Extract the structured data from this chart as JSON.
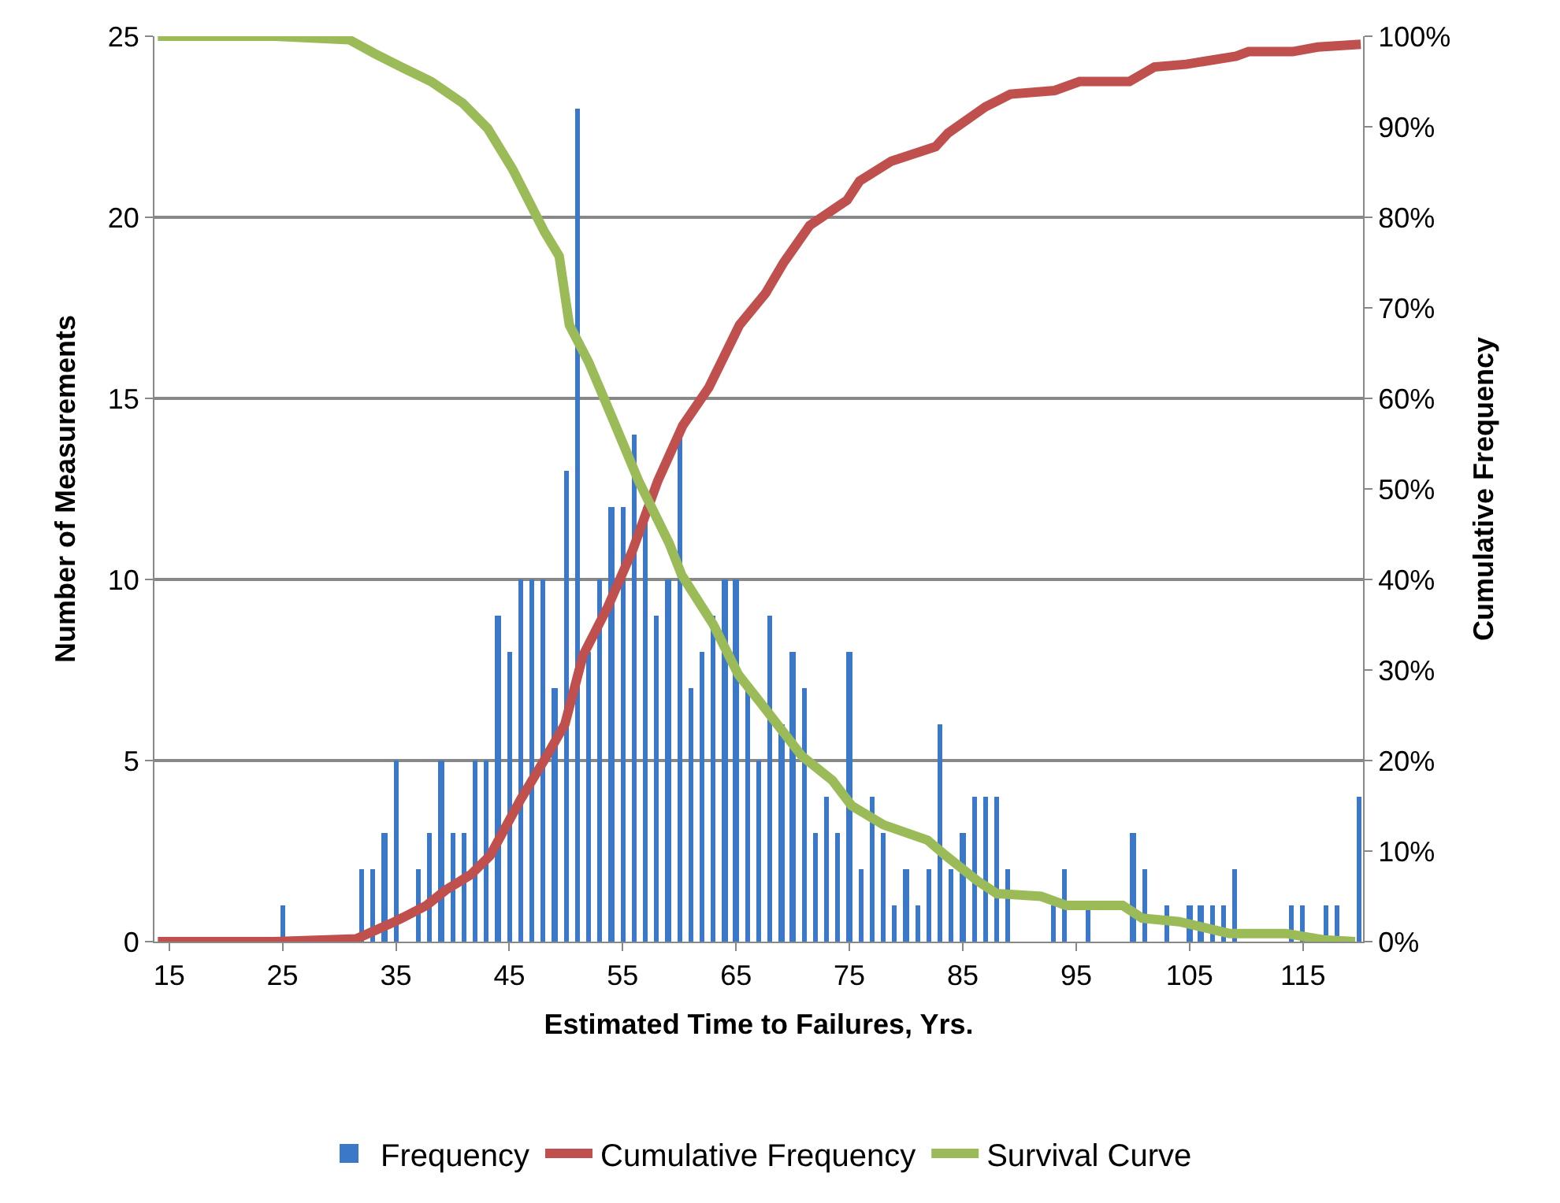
{
  "chart_data": {
    "type": "bar",
    "xlabel": "Estimated Time to Failures, Yrs.",
    "ylabel": "Number of Measurements",
    "y2label": "Cumulative Frequency",
    "x": [
      25,
      32,
      33,
      34,
      35,
      37,
      38,
      39,
      40,
      41,
      42,
      43,
      44,
      45,
      46,
      47,
      48,
      49,
      50,
      51,
      52,
      53,
      54,
      55,
      56,
      57,
      58,
      59,
      60,
      61,
      62,
      63,
      64,
      65,
      66,
      67,
      68,
      69,
      70,
      71,
      72,
      73,
      74,
      75,
      76,
      77,
      78,
      79,
      80,
      81,
      82,
      83,
      84,
      85,
      86,
      87,
      88,
      89,
      93,
      94,
      96,
      100,
      101,
      103,
      105,
      106,
      107,
      108,
      109,
      114,
      115,
      117,
      118,
      120
    ],
    "xlim": [
      13.7,
      120.3
    ],
    "xticks": [
      15,
      25,
      35,
      45,
      55,
      65,
      75,
      85,
      95,
      105,
      115
    ],
    "ylim": [
      0,
      25
    ],
    "yticks": [
      0,
      5,
      10,
      15,
      20,
      25
    ],
    "y2lim": [
      0,
      100
    ],
    "y2ticks": [
      {
        "value": 0,
        "label": "0%"
      },
      {
        "value": 10,
        "label": "10%"
      },
      {
        "value": 20,
        "label": "20%"
      },
      {
        "value": 30,
        "label": "30%"
      },
      {
        "value": 40,
        "label": "40%"
      },
      {
        "value": 50,
        "label": "50%"
      },
      {
        "value": 60,
        "label": "60%"
      },
      {
        "value": 70,
        "label": "70%"
      },
      {
        "value": 80,
        "label": "80%"
      },
      {
        "value": 90,
        "label": "90%"
      },
      {
        "value": 100,
        "label": "100%"
      }
    ],
    "grid": "y",
    "legend": "bottom",
    "series": [
      {
        "name": "Frequency",
        "color": "#3c78c8",
        "values": [
          1,
          2,
          2,
          3,
          5,
          2,
          3,
          5,
          3,
          3,
          5,
          5,
          9,
          8,
          10,
          10,
          10,
          7,
          13,
          23,
          8,
          10,
          12,
          12,
          14,
          12,
          9,
          10,
          14,
          7,
          8,
          9,
          10,
          10,
          7,
          5,
          9,
          6,
          8,
          7,
          3,
          4,
          3,
          8,
          2,
          4,
          3,
          1,
          2,
          1,
          2,
          6,
          2,
          3,
          4,
          4,
          4,
          2,
          1,
          2,
          1,
          3,
          2,
          1,
          1,
          1,
          1,
          1,
          2,
          1,
          1,
          1,
          1,
          4
        ]
      },
      {
        "name": "Cumulative Frequency",
        "type": "line",
        "axis": "y2",
        "color": "#c0504d",
        "x": [
          14,
          24.3,
          31.5,
          34.9,
          37.7,
          39.4,
          41.6,
          43.3,
          46.0,
          48.3,
          49.9,
          51.5,
          53.7,
          55.9,
          58.1,
          60.3,
          62.6,
          65.3,
          67.6,
          69.2,
          71.5,
          74.8,
          75.9,
          78.7,
          82.6,
          83.7,
          87.0,
          89.2,
          93.1,
          95.3,
          99.7,
          101.9,
          104.7,
          109.1,
          110.2,
          114.1,
          116.3,
          120.1
        ],
        "values": [
          0,
          0,
          0.3,
          2.2,
          4.0,
          5.7,
          7.4,
          9.5,
          15.7,
          20.5,
          24,
          31.6,
          37,
          43.3,
          50.9,
          57,
          61.2,
          68.1,
          71.6,
          75,
          79.1,
          81.9,
          84,
          86.2,
          87.8,
          89.3,
          92.2,
          93.6,
          94,
          95,
          95,
          96.6,
          96.9,
          97.8,
          98.3,
          98.3,
          98.8,
          99.1
        ]
      },
      {
        "name": "Survival Curve",
        "type": "line",
        "axis": "y2",
        "color": "#9bbb59",
        "x": [
          14,
          24.3,
          30.9,
          33.1,
          35.3,
          38.1,
          40.9,
          43.1,
          45.3,
          48.1,
          49.4,
          50.3,
          52.0,
          54.1,
          56.4,
          59.1,
          60.2,
          63.0,
          65.2,
          67.4,
          70.8,
          73.5,
          75.2,
          78.0,
          81.9,
          83.5,
          86.3,
          88.0,
          91.9,
          94.1,
          99.1,
          100.8,
          104.1,
          108.5,
          113.5,
          116.8,
          119.6
        ],
        "values": [
          100,
          100,
          99.6,
          98.1,
          96.7,
          95,
          92.6,
          89.8,
          85.3,
          78.4,
          75.7,
          68.1,
          64,
          57.8,
          50.9,
          44,
          40.5,
          35,
          29.5,
          26,
          20.5,
          17.8,
          15,
          12.9,
          11.2,
          9.5,
          6.7,
          5.3,
          5,
          4,
          4,
          2.6,
          2.2,
          0.9,
          0.9,
          0.2,
          0
        ]
      }
    ]
  }
}
